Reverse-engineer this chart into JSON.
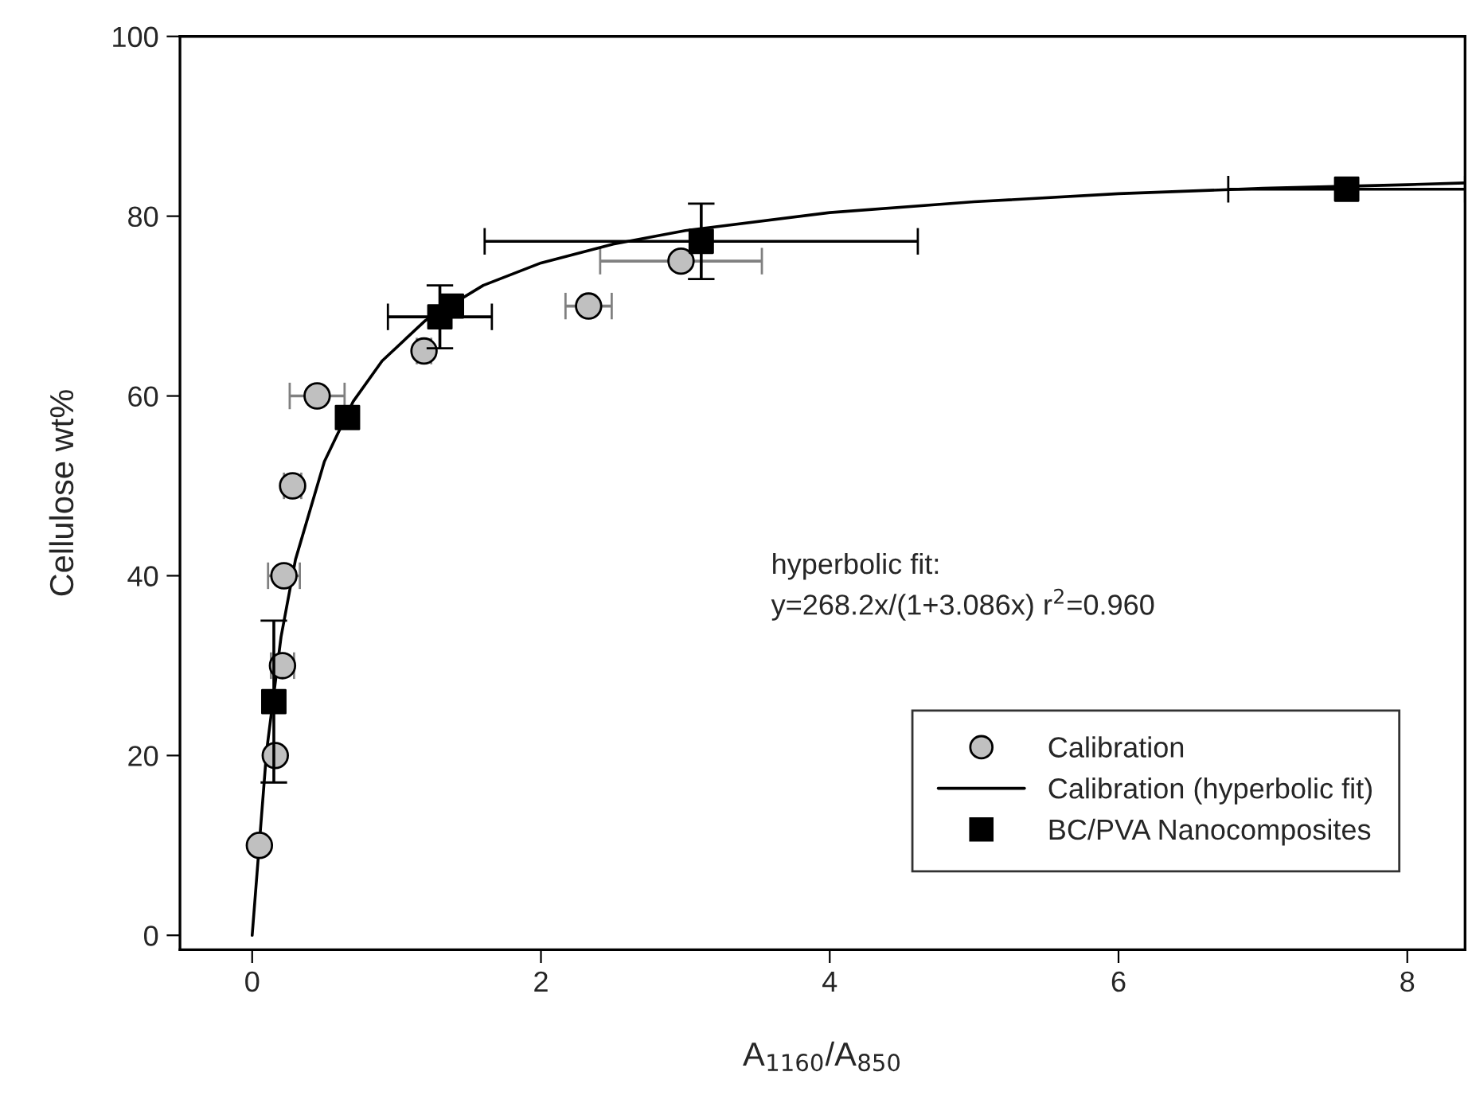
{
  "chart_data": {
    "type": "scatter",
    "xlabel": "A$_{1160}$/A$_{850}$",
    "ylabel": "Cellulose wt%",
    "xlim": [
      -0.5,
      8.4
    ],
    "ylim": [
      -1.6,
      100
    ],
    "xticks": [
      0,
      2,
      4,
      6,
      8
    ],
    "yticks": [
      0,
      20,
      40,
      60,
      80,
      100
    ],
    "grid": false,
    "legend": "bottom right",
    "annotations": [
      "hyperbolic fit:",
      "y=268.2x/(1+3.086x) r$^{2}$=0.960"
    ],
    "series": [
      {
        "name": "Calibration",
        "marker": "circle",
        "color": "#c0c0c0",
        "x": [
          0.05,
          0.16,
          0.21,
          0.22,
          0.28,
          0.45,
          1.19,
          2.33,
          2.97
        ],
        "values": [
          10,
          20,
          30,
          40,
          50,
          60,
          65,
          70,
          75
        ],
        "xerrors": [
          null,
          null,
          0.08,
          0.11,
          0.06,
          0.19,
          0.05,
          0.16,
          0.56
        ]
      },
      {
        "name": "Calibration (hyperbolic fit)",
        "type": "line",
        "marker": "none",
        "line_style": "solid",
        "color": "#000000",
        "x": [
          0,
          0.1,
          0.2,
          0.3,
          0.5,
          0.7,
          0.9,
          1.2,
          1.6,
          2,
          2.5,
          3,
          4,
          5,
          6,
          7,
          8,
          8.4
        ],
        "values": [
          0,
          20.5,
          33.2,
          41.8,
          52.7,
          59.4,
          63.9,
          68.4,
          72.3,
          74.8,
          76.9,
          78.4,
          80.4,
          81.6,
          82.5,
          83.1,
          83.5,
          83.7
        ]
      },
      {
        "name": "BC/PVA Nanocomposites",
        "marker": "square",
        "color": "#000000",
        "x": [
          0.15,
          0.66,
          1.3,
          1.38,
          3.11,
          7.58
        ],
        "values": [
          26,
          57.6,
          68.8,
          70,
          77.2,
          83
        ],
        "xerrors": [
          null,
          null,
          0.36,
          null,
          1.5,
          0.82
        ],
        "errors": [
          9,
          null,
          3.5,
          null,
          4.2,
          null
        ]
      }
    ]
  }
}
